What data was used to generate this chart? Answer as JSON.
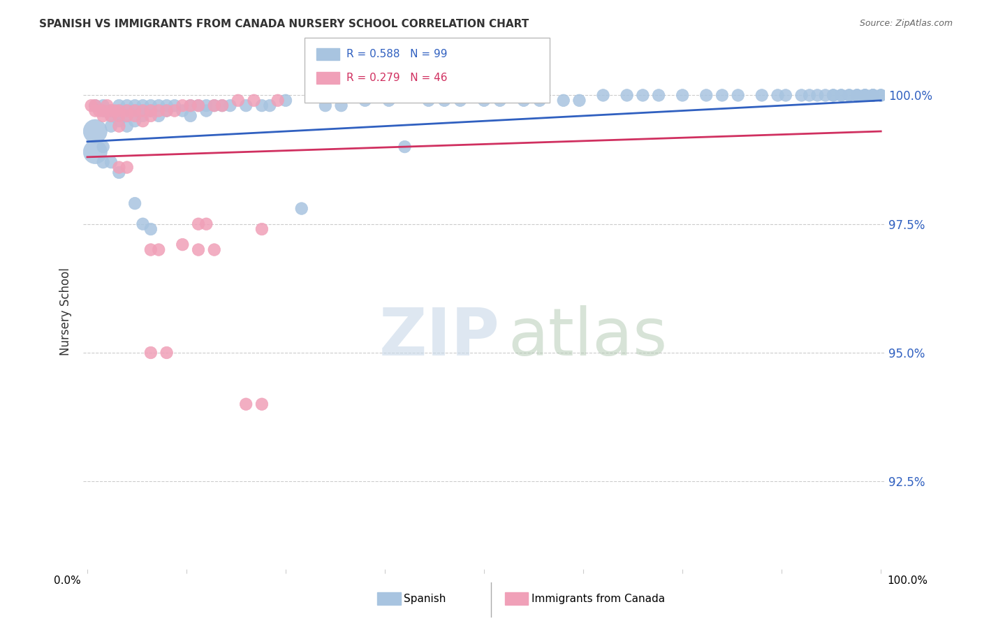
{
  "title": "SPANISH VS IMMIGRANTS FROM CANADA NURSERY SCHOOL CORRELATION CHART",
  "source": "Source: ZipAtlas.com",
  "ylabel": "Nursery School",
  "watermark_zip": "ZIP",
  "watermark_atlas": "atlas",
  "legend_spanish": "Spanish",
  "legend_immigrants": "Immigrants from Canada",
  "r_spanish": 0.588,
  "n_spanish": 99,
  "r_immigrants": 0.279,
  "n_immigrants": 46,
  "spanish_color": "#a8c4e0",
  "immigrants_color": "#f0a0b8",
  "trendline_spanish_color": "#3060c0",
  "trendline_immigrants_color": "#d03060",
  "ytick_labels": [
    "92.5%",
    "95.0%",
    "97.5%",
    "100.0%"
  ],
  "ytick_values": [
    0.925,
    0.95,
    0.975,
    1.0
  ],
  "ymin": 0.908,
  "ymax": 1.008,
  "xmin": -0.005,
  "xmax": 1.005,
  "spanish_x": [
    0.01,
    0.02,
    0.02,
    0.03,
    0.03,
    0.03,
    0.04,
    0.04,
    0.04,
    0.04,
    0.05,
    0.05,
    0.05,
    0.05,
    0.06,
    0.06,
    0.06,
    0.07,
    0.07,
    0.07,
    0.08,
    0.08,
    0.09,
    0.09,
    0.1,
    0.1,
    0.11,
    0.12,
    0.13,
    0.13,
    0.14,
    0.15,
    0.15,
    0.16,
    0.17,
    0.18,
    0.2,
    0.22,
    0.23,
    0.25,
    0.27,
    0.3,
    0.32,
    0.35,
    0.38,
    0.4,
    0.43,
    0.45,
    0.47,
    0.5,
    0.52,
    0.55,
    0.57,
    0.6,
    0.62,
    0.65,
    0.68,
    0.7,
    0.72,
    0.75,
    0.78,
    0.8,
    0.82,
    0.85,
    0.87,
    0.88,
    0.9,
    0.91,
    0.92,
    0.93,
    0.94,
    0.94,
    0.95,
    0.95,
    0.96,
    0.96,
    0.97,
    0.97,
    0.97,
    0.98,
    0.98,
    0.98,
    0.98,
    0.99,
    0.99,
    0.99,
    0.99,
    0.99,
    1.0,
    1.0,
    0.01,
    0.01,
    0.02,
    0.02,
    0.03,
    0.04,
    0.06,
    0.07,
    0.08
  ],
  "spanish_y": [
    0.998,
    0.998,
    0.997,
    0.997,
    0.996,
    0.994,
    0.998,
    0.997,
    0.996,
    0.995,
    0.998,
    0.997,
    0.996,
    0.994,
    0.998,
    0.997,
    0.995,
    0.998,
    0.997,
    0.996,
    0.998,
    0.997,
    0.998,
    0.996,
    0.998,
    0.997,
    0.998,
    0.997,
    0.998,
    0.996,
    0.998,
    0.998,
    0.997,
    0.998,
    0.998,
    0.998,
    0.998,
    0.998,
    0.998,
    0.999,
    0.978,
    0.998,
    0.998,
    0.999,
    0.999,
    0.99,
    0.999,
    0.999,
    0.999,
    0.999,
    0.999,
    0.999,
    0.999,
    0.999,
    0.999,
    1.0,
    1.0,
    1.0,
    1.0,
    1.0,
    1.0,
    1.0,
    1.0,
    1.0,
    1.0,
    1.0,
    1.0,
    1.0,
    1.0,
    1.0,
    1.0,
    1.0,
    1.0,
    1.0,
    1.0,
    1.0,
    1.0,
    1.0,
    1.0,
    1.0,
    1.0,
    1.0,
    1.0,
    1.0,
    1.0,
    1.0,
    1.0,
    1.0,
    1.0,
    1.0,
    0.993,
    0.989,
    0.99,
    0.987,
    0.987,
    0.985,
    0.979,
    0.975,
    0.974
  ],
  "spanish_sizes": [
    8,
    8,
    8,
    8,
    8,
    8,
    8,
    8,
    8,
    8,
    8,
    8,
    8,
    8,
    8,
    8,
    8,
    8,
    8,
    8,
    8,
    8,
    8,
    8,
    8,
    8,
    8,
    8,
    8,
    8,
    8,
    8,
    8,
    8,
    8,
    8,
    8,
    8,
    8,
    8,
    8,
    8,
    8,
    8,
    8,
    8,
    8,
    8,
    8,
    8,
    8,
    8,
    8,
    8,
    8,
    8,
    8,
    8,
    8,
    8,
    8,
    8,
    8,
    8,
    8,
    8,
    8,
    8,
    8,
    8,
    8,
    8,
    8,
    8,
    8,
    8,
    8,
    8,
    8,
    8,
    8,
    8,
    8,
    8,
    8,
    8,
    8,
    8,
    8,
    8,
    30,
    30,
    8,
    8,
    8,
    8,
    8,
    8,
    8
  ],
  "immigrants_x": [
    0.005,
    0.01,
    0.01,
    0.015,
    0.02,
    0.02,
    0.025,
    0.03,
    0.03,
    0.035,
    0.04,
    0.04,
    0.04,
    0.05,
    0.05,
    0.06,
    0.06,
    0.07,
    0.07,
    0.08,
    0.08,
    0.09,
    0.1,
    0.11,
    0.12,
    0.13,
    0.14,
    0.16,
    0.17,
    0.19,
    0.21,
    0.24,
    0.22,
    0.14,
    0.15,
    0.08,
    0.09,
    0.12,
    0.14,
    0.16,
    0.2,
    0.22,
    0.04,
    0.05,
    0.08,
    0.1
  ],
  "immigrants_y": [
    0.998,
    0.998,
    0.997,
    0.997,
    0.997,
    0.996,
    0.998,
    0.997,
    0.996,
    0.997,
    0.997,
    0.996,
    0.994,
    0.997,
    0.996,
    0.997,
    0.996,
    0.997,
    0.995,
    0.997,
    0.996,
    0.997,
    0.997,
    0.997,
    0.998,
    0.998,
    0.998,
    0.998,
    0.998,
    0.999,
    0.999,
    0.999,
    0.974,
    0.975,
    0.975,
    0.97,
    0.97,
    0.971,
    0.97,
    0.97,
    0.94,
    0.94,
    0.986,
    0.986,
    0.95,
    0.95
  ],
  "immigrants_sizes": [
    8,
    8,
    8,
    8,
    8,
    8,
    8,
    8,
    8,
    8,
    8,
    8,
    8,
    8,
    8,
    8,
    8,
    8,
    8,
    8,
    8,
    8,
    8,
    8,
    8,
    8,
    8,
    8,
    8,
    8,
    8,
    8,
    8,
    8,
    8,
    8,
    8,
    8,
    8,
    8,
    8,
    8,
    8,
    8,
    8,
    8
  ],
  "spanish_trend": [
    0.991,
    0.999
  ],
  "immigrants_trend": [
    0.988,
    0.993
  ],
  "xtick_positions": [
    0.0,
    0.125,
    0.25,
    0.375,
    0.5,
    0.625,
    0.75,
    0.875,
    1.0
  ]
}
